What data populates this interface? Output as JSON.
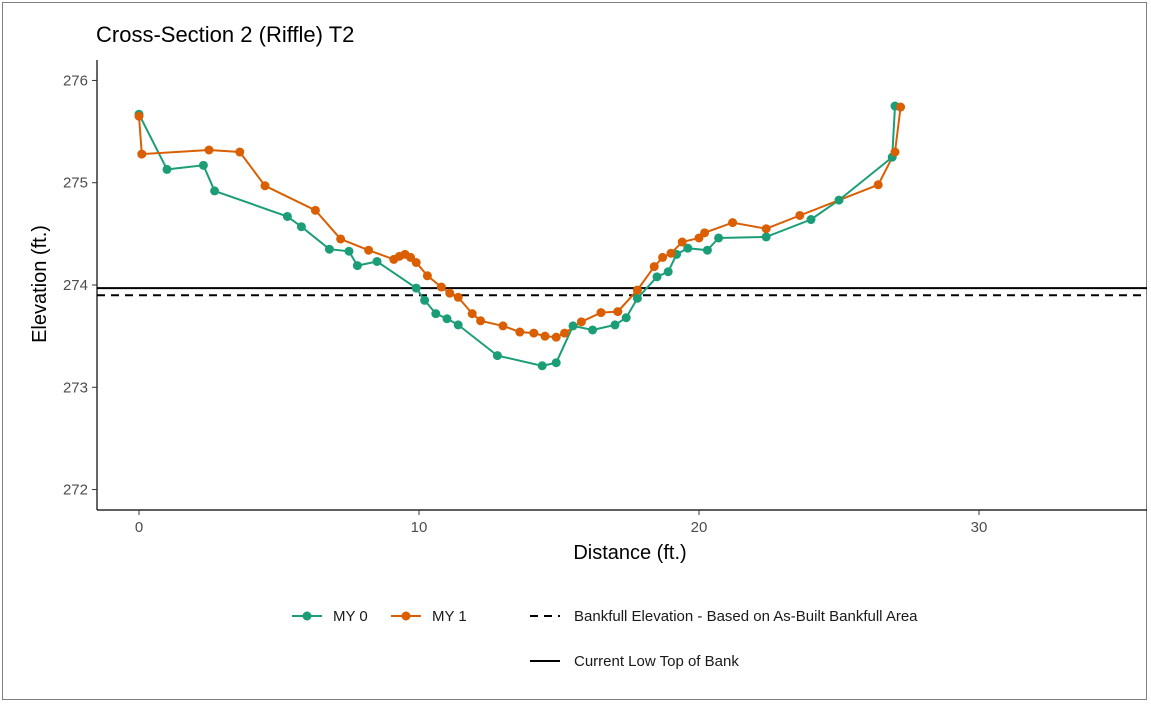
{
  "chart_data": {
    "type": "line",
    "title": "Cross-Section 2 (Riffle) T2",
    "xlabel": "Distance (ft.)",
    "ylabel": "Elevation (ft.)",
    "xlim": [
      -1.5,
      36
    ],
    "ylim": [
      271.8,
      276.2
    ],
    "x_ticks": [
      0,
      10,
      20,
      30
    ],
    "y_ticks": [
      272,
      273,
      274,
      275,
      276
    ],
    "grid": false,
    "legend_position": "bottom",
    "series": [
      {
        "name": "MY 0",
        "color": "#1b9e77",
        "points": [
          [
            0.0,
            275.67
          ],
          [
            1.0,
            275.13
          ],
          [
            2.3,
            275.17
          ],
          [
            2.7,
            274.92
          ],
          [
            5.3,
            274.67
          ],
          [
            5.8,
            274.57
          ],
          [
            6.8,
            274.35
          ],
          [
            7.5,
            274.33
          ],
          [
            7.8,
            274.19
          ],
          [
            8.5,
            274.23
          ],
          [
            9.9,
            273.97
          ],
          [
            10.2,
            273.85
          ],
          [
            10.6,
            273.72
          ],
          [
            11.0,
            273.67
          ],
          [
            11.4,
            273.61
          ],
          [
            12.8,
            273.31
          ],
          [
            14.4,
            273.21
          ],
          [
            14.9,
            273.24
          ],
          [
            15.5,
            273.6
          ],
          [
            16.2,
            273.56
          ],
          [
            17.0,
            273.61
          ],
          [
            17.4,
            273.68
          ],
          [
            17.8,
            273.87
          ],
          [
            18.5,
            274.08
          ],
          [
            18.9,
            274.13
          ],
          [
            19.2,
            274.3
          ],
          [
            19.6,
            274.36
          ],
          [
            20.3,
            274.34
          ],
          [
            20.7,
            274.46
          ],
          [
            22.4,
            274.47
          ],
          [
            24.0,
            274.64
          ],
          [
            25.0,
            274.83
          ],
          [
            26.9,
            275.25
          ],
          [
            27.0,
            275.75
          ]
        ]
      },
      {
        "name": "MY 1",
        "color": "#d95f02",
        "points": [
          [
            0.0,
            275.65
          ],
          [
            0.1,
            275.28
          ],
          [
            2.5,
            275.32
          ],
          [
            3.6,
            275.3
          ],
          [
            4.5,
            274.97
          ],
          [
            6.3,
            274.73
          ],
          [
            7.2,
            274.45
          ],
          [
            8.2,
            274.34
          ],
          [
            9.1,
            274.25
          ],
          [
            9.3,
            274.28
          ],
          [
            9.5,
            274.3
          ],
          [
            9.7,
            274.27
          ],
          [
            9.9,
            274.22
          ],
          [
            10.3,
            274.09
          ],
          [
            10.8,
            273.98
          ],
          [
            11.1,
            273.92
          ],
          [
            11.4,
            273.88
          ],
          [
            11.9,
            273.72
          ],
          [
            12.2,
            273.65
          ],
          [
            13.0,
            273.6
          ],
          [
            13.6,
            273.54
          ],
          [
            14.1,
            273.53
          ],
          [
            14.5,
            273.5
          ],
          [
            14.9,
            273.49
          ],
          [
            15.2,
            273.53
          ],
          [
            15.8,
            273.64
          ],
          [
            16.5,
            273.73
          ],
          [
            17.1,
            273.74
          ],
          [
            17.8,
            273.95
          ],
          [
            18.4,
            274.18
          ],
          [
            18.7,
            274.27
          ],
          [
            19.0,
            274.31
          ],
          [
            19.4,
            274.42
          ],
          [
            20.0,
            274.46
          ],
          [
            20.2,
            274.51
          ],
          [
            21.2,
            274.61
          ],
          [
            22.4,
            274.55
          ],
          [
            23.6,
            274.68
          ],
          [
            26.4,
            274.98
          ],
          [
            27.0,
            275.3
          ],
          [
            27.2,
            275.74
          ]
        ]
      }
    ],
    "reference_lines": [
      {
        "name": "Bankfull Elevation - Based on As-Built Bankfull Area",
        "y": 273.9,
        "style": "dashed",
        "color": "#000000"
      },
      {
        "name": "Current Low Top of Bank",
        "y": 273.97,
        "style": "solid",
        "color": "#000000"
      }
    ]
  }
}
